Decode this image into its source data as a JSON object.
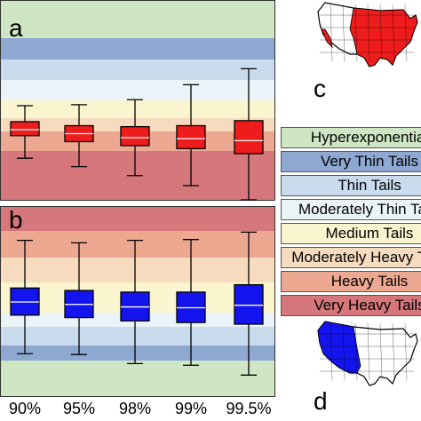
{
  "chart_data": [
    {
      "panel": "a",
      "type": "box",
      "categories": [
        "90%",
        "95%",
        "98%",
        "99%",
        "99.5%"
      ],
      "box_color": "#ee1c1c",
      "boxes": [
        {
          "whisker_low": 1.82,
          "q1": 2.95,
          "median": 3.25,
          "q3": 3.65,
          "whisker_high": 4.45
        },
        {
          "whisker_low": 1.4,
          "q1": 2.65,
          "median": 3.05,
          "q3": 3.45,
          "whisker_high": 4.5
        },
        {
          "whisker_low": 0.95,
          "q1": 2.45,
          "median": 2.85,
          "q3": 3.4,
          "whisker_high": 4.75
        },
        {
          "whisker_low": 0.45,
          "q1": 2.3,
          "median": 2.8,
          "q3": 3.45,
          "whisker_high": 5.5
        },
        {
          "whisker_low": -0.7,
          "q1": 2.05,
          "median": 2.7,
          "q3": 3.7,
          "whisker_high": 6.3
        }
      ]
    },
    {
      "panel": "b",
      "type": "box",
      "categories": [
        "90%",
        "95%",
        "98%",
        "99%",
        "99.5%"
      ],
      "box_color": "#1414ee",
      "boxes": [
        {
          "whisker_low": 1.0,
          "q1": 3.35,
          "median": 4.15,
          "q3": 5.0,
          "whisker_high": 7.9
        },
        {
          "whisker_low": 0.95,
          "q1": 3.2,
          "median": 4.0,
          "q3": 4.85,
          "whisker_high": 7.75
        },
        {
          "whisker_low": 0.4,
          "q1": 3.0,
          "median": 3.85,
          "q3": 4.75,
          "whisker_high": 7.9
        },
        {
          "whisker_low": 0.3,
          "q1": 2.9,
          "median": 3.8,
          "q3": 4.75,
          "whisker_high": 7.95
        },
        {
          "whisker_low": -0.3,
          "q1": 2.8,
          "median": 3.95,
          "q3": 5.2,
          "whisker_high": 8.4
        }
      ]
    }
  ],
  "panel_labels": {
    "a": "a",
    "b": "b",
    "c": "c",
    "d": "d"
  },
  "x_tick_labels": [
    "90%",
    "95%",
    "98%",
    "99%",
    "99.5%"
  ],
  "tail_bands": [
    {
      "label": "Hyperexponential",
      "color": "#cfe6c4"
    },
    {
      "label": "Very Thin Tails",
      "color": "#8ea8d2"
    },
    {
      "label": "Thin Tails",
      "color": "#c8dcee"
    },
    {
      "label": "Moderately Thin Tails",
      "color": "#eaf3f7"
    },
    {
      "label": "Medium Tails",
      "color": "#fbf5cf"
    },
    {
      "label": "Moderately Heavy Tails",
      "color": "#f6dbbf"
    },
    {
      "label": "Heavy Tails",
      "color": "#eda892"
    },
    {
      "label": "Very Heavy Tails",
      "color": "#d6777b"
    }
  ],
  "map_colors": {
    "highlight_c": "#ee1c1c",
    "highlight_d": "#1414ee",
    "base": "#ffffff"
  }
}
